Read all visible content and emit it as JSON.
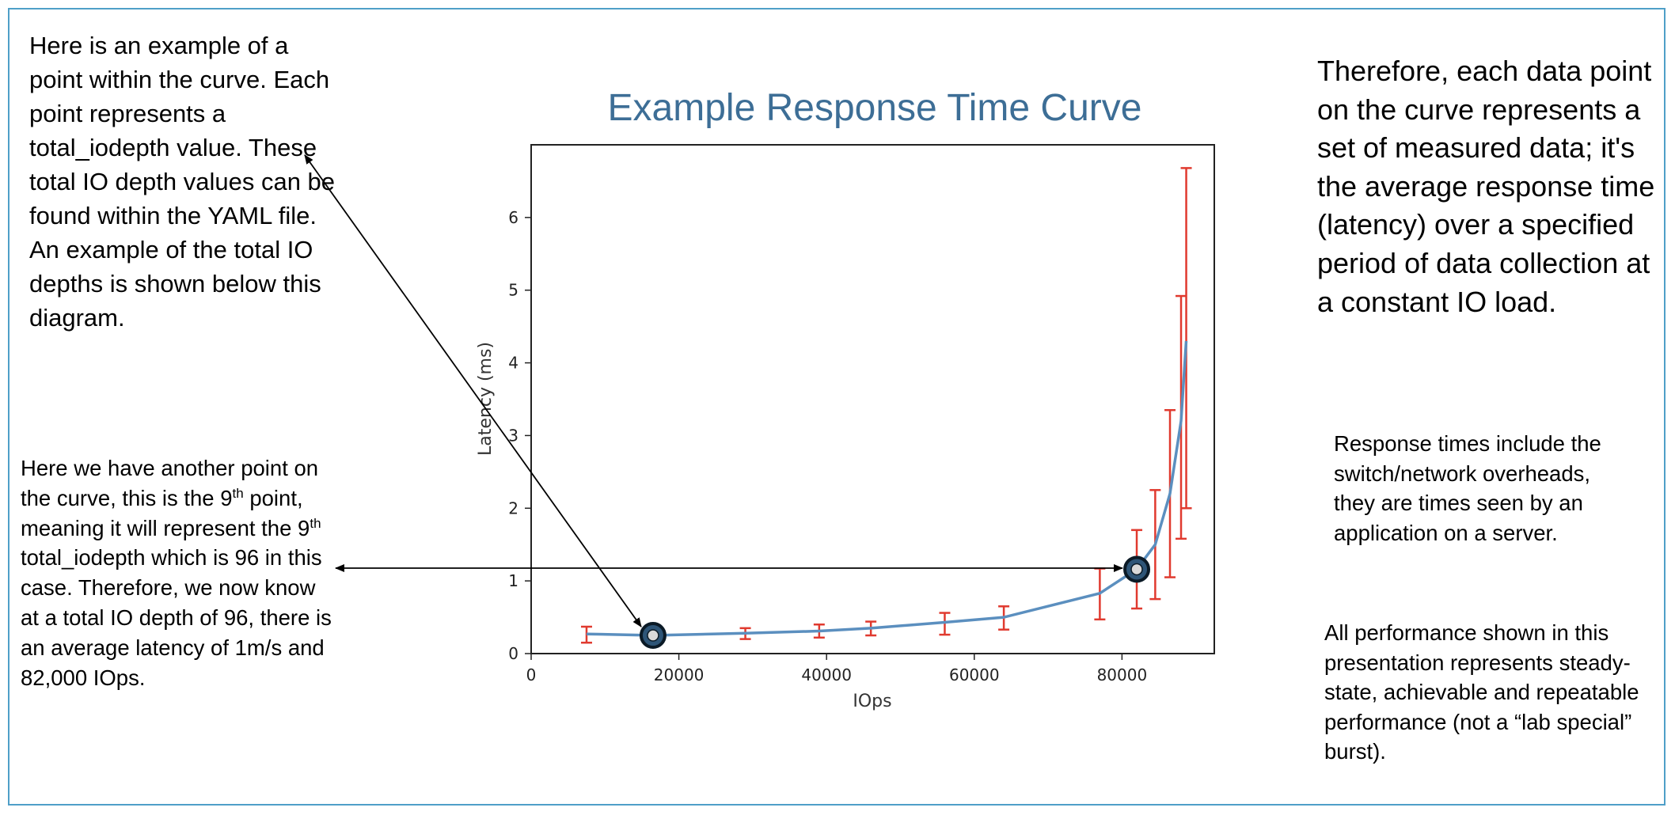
{
  "notes": {
    "top_left": "Here is an example of a point within the curve. Each point represents a total_iodepth value. These total IO depth values can be found within the YAML file. An example of the total IO depths is shown below this diagram.",
    "mid_left": {
      "part1": "Here we have another point on the curve, this is the 9",
      "sup1": "th",
      "part2": " point, meaning it will represent the 9",
      "sup2": "th",
      "part3": " total_iodepth which is 96 in this case. Therefore, we now know at a total IO depth of 96, there is an average latency of 1m/s and 82,000 IOps."
    },
    "top_right": "Therefore, each data point on the curve represents a set of measured data; it's the average response time (latency) over a specified period of data collection at a constant IO load.",
    "right_1": "Response times include the switch/network overheads, they are times seen by an application on a server.",
    "right_2": "All performance shown in this presentation represents steady-state, achievable and repeatable performance (not a “lab special” burst)."
  },
  "colors": {
    "frame": "#4f9fc8",
    "line": "#5b8fbf",
    "error_bars": "#e03a2f",
    "title": "#3d6e96",
    "marker_fill": "#2e5577",
    "marker_ring": "#0b1a26"
  },
  "chart_data": {
    "type": "line",
    "title": "Example Response Time Curve",
    "xlabel": "IOps",
    "ylabel": "Latency (ms)",
    "xlim": [
      0,
      92500
    ],
    "ylim": [
      0,
      7
    ],
    "xticks": [
      0,
      20000,
      40000,
      60000,
      80000
    ],
    "yticks": [
      0,
      1,
      2,
      3,
      4,
      5,
      6
    ],
    "series": [
      {
        "name": "Latency",
        "x": [
          7500,
          16500,
          29000,
          39000,
          46000,
          56000,
          64000,
          77000,
          82000,
          84500,
          86500,
          88000,
          88700
        ],
        "y": [
          0.27,
          0.25,
          0.28,
          0.31,
          0.35,
          0.43,
          0.5,
          0.83,
          1.16,
          1.5,
          2.2,
          3.2,
          4.3
        ],
        "err_low": [
          0.15,
          0.14,
          0.2,
          0.22,
          0.25,
          0.26,
          0.33,
          0.47,
          0.62,
          0.75,
          1.05,
          1.58,
          2.0
        ],
        "err_high": [
          0.37,
          0.36,
          0.35,
          0.4,
          0.44,
          0.56,
          0.65,
          1.17,
          1.7,
          2.25,
          3.35,
          4.92,
          6.68
        ]
      }
    ],
    "highlighted_points": [
      {
        "x": 16500,
        "y": 0.25
      },
      {
        "x": 82000,
        "y": 1.16
      }
    ]
  }
}
